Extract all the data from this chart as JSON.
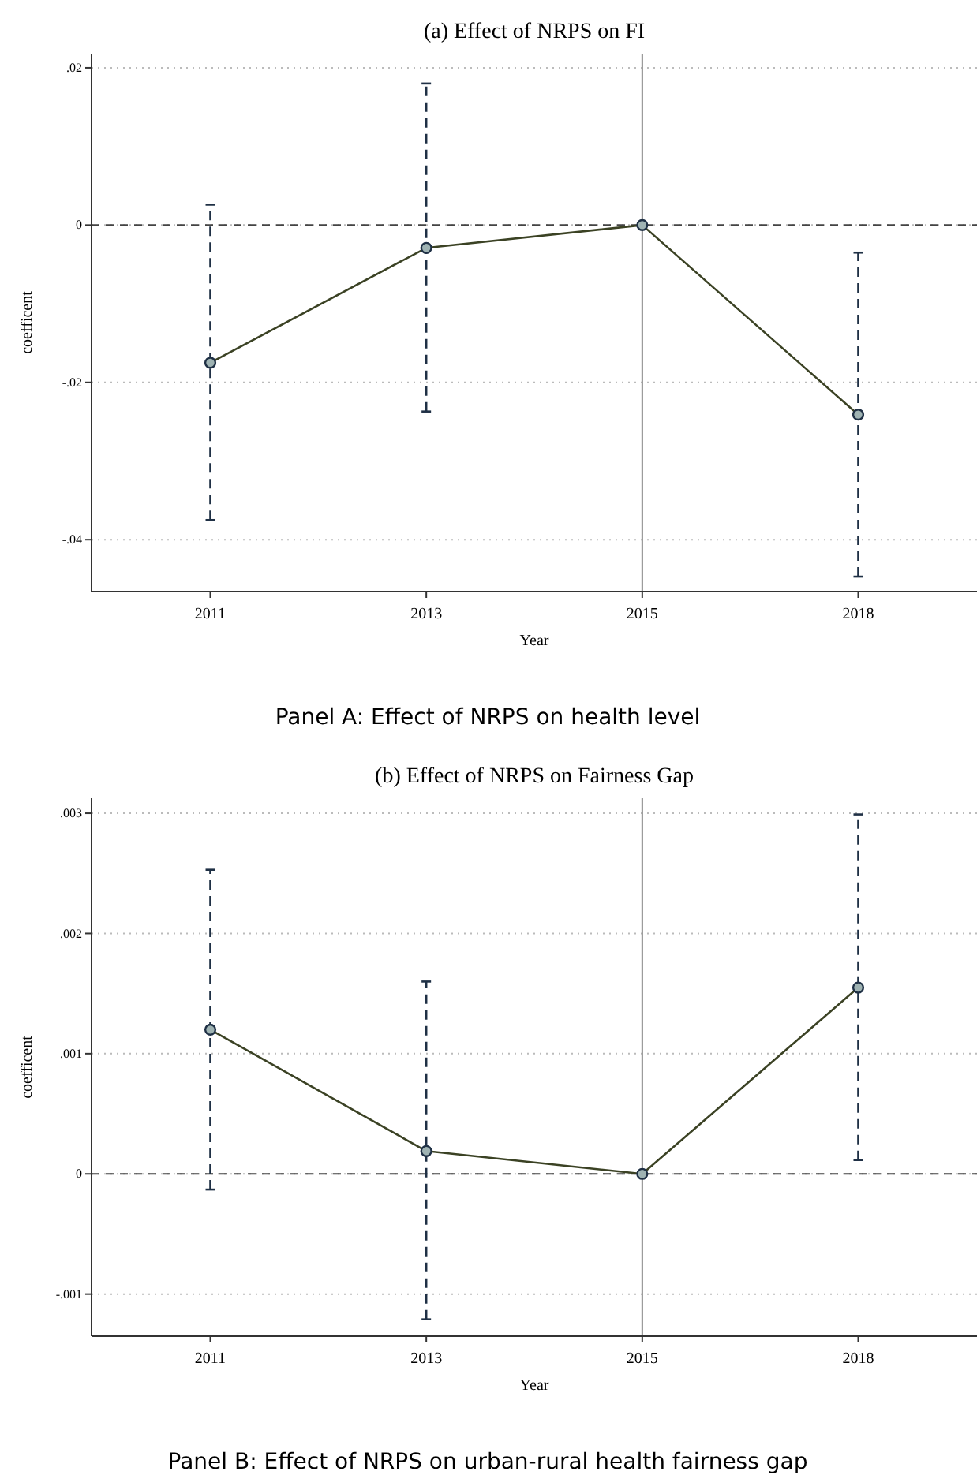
{
  "chart_data": [
    {
      "type": "line",
      "title": "(a) Effect of NRPS on FI",
      "xlabel": "Year",
      "ylabel": "coefficent",
      "annotations": [
        "Panel A: Effect of NRPS on health level"
      ],
      "categories": [
        "2011",
        "2013",
        "2015",
        "2018"
      ],
      "series": [
        {
          "color": "#3b4224",
          "values": [
            -0.0175,
            -0.0029,
            0,
            -0.0241
          ],
          "errors": [
            [
              -0.0375,
              0.0026
            ],
            [
              -0.0237,
              0.018
            ],
            null,
            [
              -0.0447,
              -0.0035
            ]
          ]
        }
      ],
      "ylim": [
        -0.0466,
        0.0218
      ],
      "yticks": [
        {
          "value": -0.04,
          "label": "-.04"
        },
        {
          "value": -0.02,
          "label": "-.02"
        },
        0,
        {
          "value": 0.02,
          "label": ".02"
        }
      ],
      "grid": "y",
      "marker": "circle",
      "line_style": "solid",
      "ref_lines": [
        {
          "axis": "y",
          "value": 0,
          "color": "#444444",
          "line_style": "dashed"
        },
        {
          "axis": "x",
          "value": "2015",
          "color": "#888888",
          "line_style": "solid"
        }
      ]
    },
    {
      "type": "line",
      "title": "(b) Effect of NRPS on Fairness Gap",
      "xlabel": "Year",
      "ylabel": "coefficent",
      "annotations": [
        "Panel B: Effect of NRPS on urban-rural health fairness gap"
      ],
      "categories": [
        "2011",
        "2013",
        "2015",
        "2018"
      ],
      "series": [
        {
          "color": "#3b4224",
          "values": [
            0.0012,
            0.00019,
            0,
            0.00155
          ],
          "errors": [
            [
              -0.00013,
              0.00253
            ],
            [
              -0.00121,
              0.0016
            ],
            null,
            [
              0.000115,
              0.00299
            ]
          ]
        }
      ],
      "ylim": [
        -0.00135,
        0.003125
      ],
      "yticks": [
        {
          "value": -0.001,
          "label": "-.001"
        },
        0,
        {
          "value": 0.001,
          "label": ".001"
        },
        {
          "value": 0.002,
          "label": ".002"
        },
        {
          "value": 0.003,
          "label": ".003"
        }
      ],
      "grid": "y",
      "marker": "circle",
      "line_style": "solid",
      "ref_lines": [
        {
          "axis": "y",
          "value": 0,
          "color": "#444444",
          "line_style": "dashed"
        },
        {
          "axis": "x",
          "value": "2015",
          "color": "#888888",
          "line_style": "solid"
        }
      ]
    }
  ]
}
